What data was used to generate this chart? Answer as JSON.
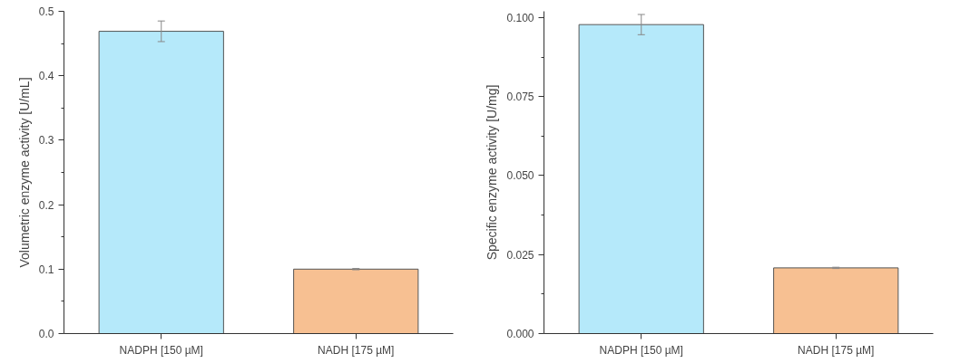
{
  "chart_data": [
    {
      "type": "bar",
      "ylabel": "Volumetric enzyme activity [U/mL]",
      "categories": [
        "NADPH [150 µM]",
        "NADH [175 µM]"
      ],
      "values": [
        0.469,
        0.1
      ],
      "colors": [
        "#b5e9fa",
        "#f7c092"
      ],
      "errors": [
        0.016,
        0.001
      ],
      "ylim": [
        0,
        0.5
      ],
      "yticks": [
        {
          "value": 0,
          "label": "0.0"
        },
        0.1,
        0.2,
        0.3,
        0.4,
        0.5
      ],
      "grid": false
    },
    {
      "type": "bar",
      "ylabel": "Specific enzyme activity [U/mg]",
      "categories": [
        "NADPH [150 µM]",
        "NADH [175 µM]"
      ],
      "values": [
        0.0978,
        0.0208
      ],
      "colors": [
        "#b5e9fa",
        "#f7c092"
      ],
      "errors": [
        0.0032,
        0.0002
      ],
      "ylim": [
        0,
        0.102
      ],
      "yticks": [
        {
          "value": 0,
          "label": "0.000"
        },
        {
          "value": 0.025,
          "label": "0.025"
        },
        {
          "value": 0.05,
          "label": "0.050"
        },
        {
          "value": 0.075,
          "label": "0.075"
        },
        {
          "value": 0.1,
          "label": "0.100"
        }
      ],
      "grid": false
    }
  ]
}
